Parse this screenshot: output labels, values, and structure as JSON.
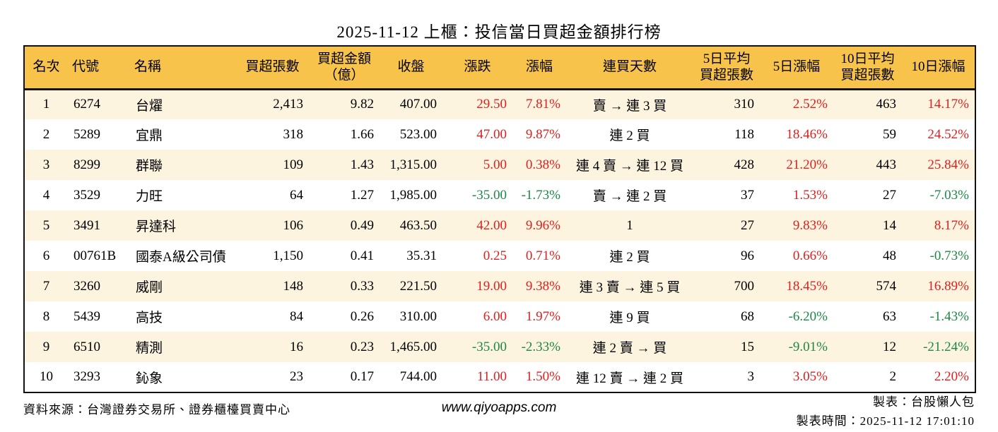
{
  "title": "2025-11-12 上櫃：投信當日買超金額排行榜",
  "colors": {
    "up": "#DC1F1F",
    "down": "#1E8746",
    "header_bg": "#F7C34B",
    "row_alt": "#FCF4DF"
  },
  "table": {
    "columns": [
      {
        "key": "rank",
        "label": "名次",
        "align": "center"
      },
      {
        "key": "code",
        "label": "代號",
        "align": "left"
      },
      {
        "key": "name",
        "label": "名稱",
        "align": "left"
      },
      {
        "key": "volume",
        "label": "買超張數",
        "align": "right"
      },
      {
        "key": "amount",
        "label": "買超金額\n（億）",
        "align": "right"
      },
      {
        "key": "close",
        "label": "收盤",
        "align": "right"
      },
      {
        "key": "change",
        "label": "漲跌",
        "align": "right",
        "signColor": true
      },
      {
        "key": "change_pct",
        "label": "漲幅",
        "align": "right",
        "signColor": true
      },
      {
        "key": "streak",
        "label": "連買天數",
        "align": "center"
      },
      {
        "key": "avg5",
        "label": "5日平均\n買超張數",
        "align": "right"
      },
      {
        "key": "pct5",
        "label": "5日漲幅",
        "align": "right",
        "signColor": true
      },
      {
        "key": "avg10",
        "label": "10日平均\n買超張數",
        "align": "right"
      },
      {
        "key": "pct10",
        "label": "10日漲幅",
        "align": "right",
        "signColor": true
      }
    ],
    "rows": [
      {
        "rank": "1",
        "code": "6274",
        "name": "台燿",
        "volume": "2,413",
        "amount": "9.82",
        "close": "407.00",
        "change": "29.50",
        "change_pct": "7.81%",
        "streak": "賣 → 連 3 買",
        "avg5": "310",
        "pct5": "2.52%",
        "avg10": "463",
        "pct10": "14.17%"
      },
      {
        "rank": "2",
        "code": "5289",
        "name": "宜鼎",
        "volume": "318",
        "amount": "1.66",
        "close": "523.00",
        "change": "47.00",
        "change_pct": "9.87%",
        "streak": "連 2 買",
        "avg5": "118",
        "pct5": "18.46%",
        "avg10": "59",
        "pct10": "24.52%"
      },
      {
        "rank": "3",
        "code": "8299",
        "name": "群聯",
        "volume": "109",
        "amount": "1.43",
        "close": "1,315.00",
        "change": "5.00",
        "change_pct": "0.38%",
        "streak": "連 4 賣 → 連 12 買",
        "avg5": "428",
        "pct5": "21.20%",
        "avg10": "443",
        "pct10": "25.84%"
      },
      {
        "rank": "4",
        "code": "3529",
        "name": "力旺",
        "volume": "64",
        "amount": "1.27",
        "close": "1,985.00",
        "change": "-35.00",
        "change_pct": "-1.73%",
        "streak": "賣 → 連 2 買",
        "avg5": "37",
        "pct5": "1.53%",
        "avg10": "27",
        "pct10": "-7.03%"
      },
      {
        "rank": "5",
        "code": "3491",
        "name": "昇達科",
        "volume": "106",
        "amount": "0.49",
        "close": "463.50",
        "change": "42.00",
        "change_pct": "9.96%",
        "streak": "1",
        "avg5": "27",
        "pct5": "9.83%",
        "avg10": "14",
        "pct10": "8.17%"
      },
      {
        "rank": "6",
        "code": "00761B",
        "name": "國泰A級公司債",
        "volume": "1,150",
        "amount": "0.41",
        "close": "35.31",
        "change": "0.25",
        "change_pct": "0.71%",
        "streak": "連 2 買",
        "avg5": "96",
        "pct5": "0.66%",
        "avg10": "48",
        "pct10": "-0.73%"
      },
      {
        "rank": "7",
        "code": "3260",
        "name": "威剛",
        "volume": "148",
        "amount": "0.33",
        "close": "221.50",
        "change": "19.00",
        "change_pct": "9.38%",
        "streak": "連 3 賣 → 連 5 買",
        "avg5": "700",
        "pct5": "18.45%",
        "avg10": "574",
        "pct10": "16.89%"
      },
      {
        "rank": "8",
        "code": "5439",
        "name": "高技",
        "volume": "84",
        "amount": "0.26",
        "close": "310.00",
        "change": "6.00",
        "change_pct": "1.97%",
        "streak": "連 9 買",
        "avg5": "68",
        "pct5": "-6.20%",
        "avg10": "63",
        "pct10": "-1.43%"
      },
      {
        "rank": "9",
        "code": "6510",
        "name": "精測",
        "volume": "16",
        "amount": "0.23",
        "close": "1,465.00",
        "change": "-35.00",
        "change_pct": "-2.33%",
        "streak": "連 2 賣 → 買",
        "avg5": "15",
        "pct5": "-9.01%",
        "avg10": "12",
        "pct10": "-21.24%"
      },
      {
        "rank": "10",
        "code": "3293",
        "name": "鈊象",
        "volume": "23",
        "amount": "0.17",
        "close": "744.00",
        "change": "11.00",
        "change_pct": "1.50%",
        "streak": "連 12 賣 → 連 2 買",
        "avg5": "3",
        "pct5": "3.05%",
        "avg10": "2",
        "pct10": "2.20%"
      }
    ]
  },
  "footer": {
    "source": "資料來源：台灣證券交易所、證券櫃檯買賣中心",
    "website": "www.qiyoapps.com",
    "author": "製表：台股懶人包",
    "generated_at": "製表時間：2025-11-12 17:01:10"
  }
}
